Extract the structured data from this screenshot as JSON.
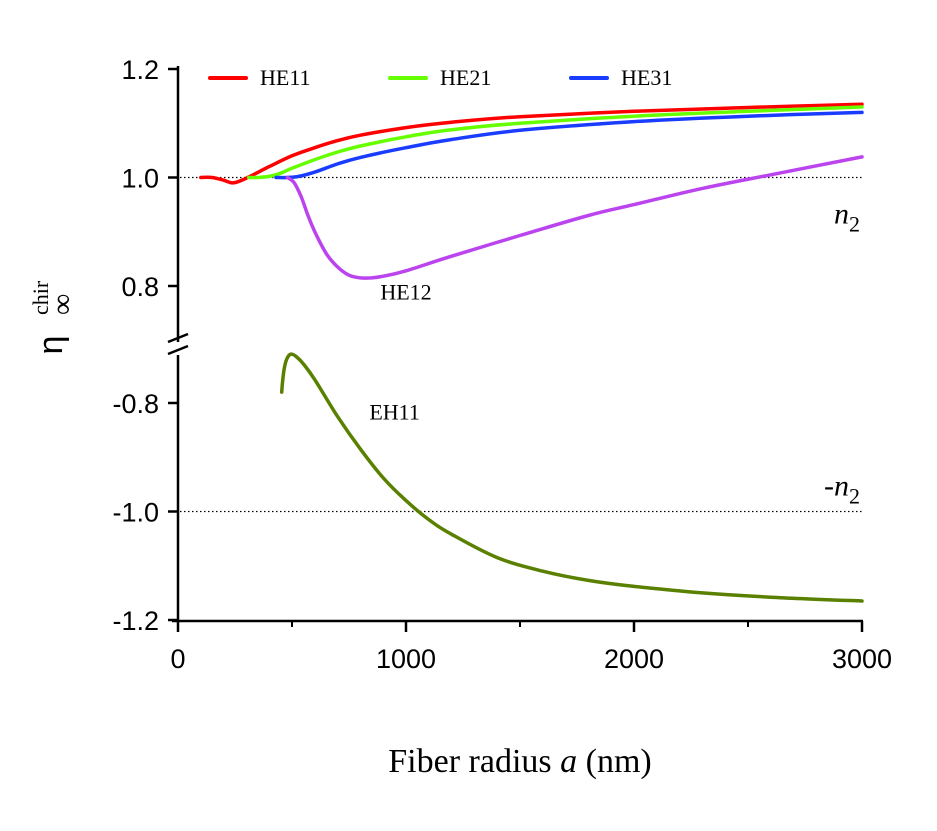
{
  "chart_data": {
    "type": "line",
    "title": "",
    "xlabel": {
      "prefix": "Fiber radius ",
      "italic": "a",
      "suffix": " (nm)"
    },
    "ylabel": {
      "base": "η",
      "superscript": "chir",
      "subscript": "∞"
    },
    "xlim": [
      0,
      3000
    ],
    "x_ticks": [
      0,
      1000,
      2000,
      3000
    ],
    "x_tick_labels": [
      "0",
      "1000",
      "2000",
      "3000"
    ],
    "x_minor_ticks": [
      500,
      1500,
      2500
    ],
    "broken_y_axis": true,
    "y_panels": [
      {
        "name": "upper",
        "ylim": [
          0.72,
          1.2
        ],
        "ticks": [
          1.2,
          1.0,
          0.8
        ],
        "tick_labels": [
          "1.2",
          "1.0",
          "0.8"
        ]
      },
      {
        "name": "lower",
        "ylim": [
          -1.2,
          -0.72
        ],
        "ticks": [
          -0.8,
          -1.0,
          -1.2
        ],
        "tick_labels": [
          "-0.8",
          "-1.0",
          "-1.2"
        ]
      }
    ],
    "reference_lines": [
      {
        "panel": "upper",
        "y": 1.0,
        "label_base": "n",
        "label_sub": "2",
        "label_prefix": "",
        "style": "dotted"
      },
      {
        "panel": "lower",
        "y": -1.0,
        "label_base": "n",
        "label_sub": "2",
        "label_prefix": "-",
        "style": "dotted"
      }
    ],
    "grid": false,
    "legend": {
      "placement": "top",
      "entries": [
        "HE11",
        "HE21",
        "HE31"
      ]
    },
    "series": [
      {
        "name": "HE11",
        "panel": "upper",
        "color": "#ff0000",
        "in_legend": true,
        "x": [
          100,
          150,
          200,
          240,
          280,
          330,
          400,
          500,
          600,
          700,
          800,
          1000,
          1200,
          1500,
          2000,
          2500,
          3000
        ],
        "y": [
          1.0,
          1.0,
          0.995,
          0.99,
          0.995,
          1.005,
          1.02,
          1.04,
          1.055,
          1.068,
          1.078,
          1.092,
          1.102,
          1.112,
          1.122,
          1.129,
          1.135
        ]
      },
      {
        "name": "HE21",
        "panel": "upper",
        "color": "#66ff00",
        "in_legend": true,
        "x": [
          310,
          350,
          400,
          450,
          500,
          600,
          700,
          800,
          1000,
          1200,
          1500,
          2000,
          2500,
          3000
        ],
        "y": [
          1.0,
          1.0,
          1.002,
          1.008,
          1.017,
          1.033,
          1.047,
          1.058,
          1.075,
          1.088,
          1.1,
          1.113,
          1.122,
          1.13
        ]
      },
      {
        "name": "HE31",
        "panel": "upper",
        "color": "#1a3cff",
        "in_legend": true,
        "x": [
          430,
          480,
          530,
          600,
          700,
          800,
          1000,
          1200,
          1500,
          2000,
          2500,
          3000
        ],
        "y": [
          1.0,
          1.0,
          1.002,
          1.01,
          1.025,
          1.037,
          1.055,
          1.07,
          1.087,
          1.103,
          1.113,
          1.12
        ]
      },
      {
        "name": "HE12",
        "panel": "upper",
        "color": "#bb44ee",
        "in_legend": false,
        "x": [
          480,
          510,
          540,
          570,
          600,
          650,
          700,
          750,
          800,
          850,
          900,
          1000,
          1200,
          1500,
          1800,
          2000,
          2300,
          2600,
          3000
        ],
        "y": [
          1.0,
          0.99,
          0.965,
          0.93,
          0.9,
          0.86,
          0.835,
          0.82,
          0.815,
          0.815,
          0.818,
          0.828,
          0.855,
          0.893,
          0.93,
          0.95,
          0.98,
          1.005,
          1.038
        ]
      },
      {
        "name": "EH11",
        "panel": "lower",
        "color": "#5a8000",
        "in_legend": false,
        "x": [
          455,
          460,
          470,
          485,
          500,
          520,
          550,
          600,
          700,
          800,
          900,
          1000,
          1100,
          1200,
          1400,
          1600,
          1800,
          2000,
          2300,
          2600,
          3000
        ],
        "y": [
          -0.78,
          -0.755,
          -0.728,
          -0.713,
          -0.71,
          -0.715,
          -0.728,
          -0.757,
          -0.825,
          -0.885,
          -0.938,
          -0.98,
          -1.015,
          -1.042,
          -1.085,
          -1.11,
          -1.127,
          -1.138,
          -1.15,
          -1.158,
          -1.165
        ]
      }
    ],
    "annotations": [
      {
        "text": "HE12",
        "panel": "upper",
        "x": 1000,
        "y": 0.775
      },
      {
        "text": "EH11",
        "panel": "lower",
        "x": 950,
        "y": -0.83
      }
    ]
  }
}
